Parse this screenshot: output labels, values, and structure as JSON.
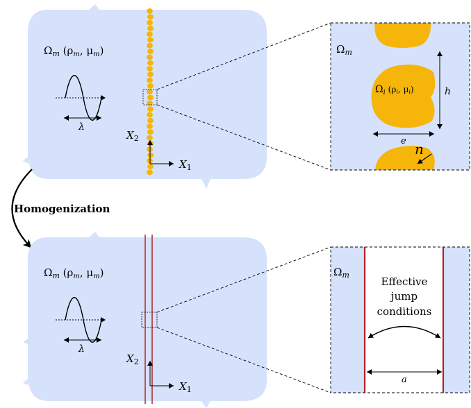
{
  "colors": {
    "medium": "#d6e2fb",
    "inclusion": "#f5b50a",
    "interface": "#b22222",
    "stroke": "#000000"
  },
  "top": {
    "medium_label_omega": "Ω",
    "medium_label_sub": "m",
    "medium_params_prefix": " (ρ",
    "medium_params_sub1": "m",
    "medium_params_mid": ", μ",
    "medium_params_sub2": "m",
    "medium_params_suffix": ")",
    "wavelength": "λ",
    "axis_x2": "X",
    "axis_x2_sub": "2",
    "axis_x1": "X",
    "axis_x1_sub": "1",
    "zoom": {
      "omega": "Ω",
      "omega_sub": "m",
      "inclusion_omega": "Ω",
      "inclusion_sub": "i",
      "inclusion_params_prefix": " (ρ",
      "inclusion_params_sub1": "i",
      "inclusion_params_mid": ", μ",
      "inclusion_params_sub2": "i",
      "inclusion_params_suffix": ")",
      "height": "h",
      "thickness": "e",
      "normal": "n"
    }
  },
  "arrow_label": "Homogenization",
  "bottom": {
    "medium_label_omega": "Ω",
    "medium_label_sub": "m",
    "medium_params_prefix": " (ρ",
    "medium_params_sub1": "m",
    "medium_params_mid": ", μ",
    "medium_params_sub2": "m",
    "medium_params_suffix": ")",
    "wavelength": "λ",
    "axis_x2": "X",
    "axis_x2_sub": "2",
    "axis_x1": "X",
    "axis_x1_sub": "1",
    "zoom": {
      "omega": "Ω",
      "omega_sub": "m",
      "effective_line1": "Effective",
      "effective_line2": "jump",
      "effective_line3": "conditions",
      "width": "a"
    }
  }
}
